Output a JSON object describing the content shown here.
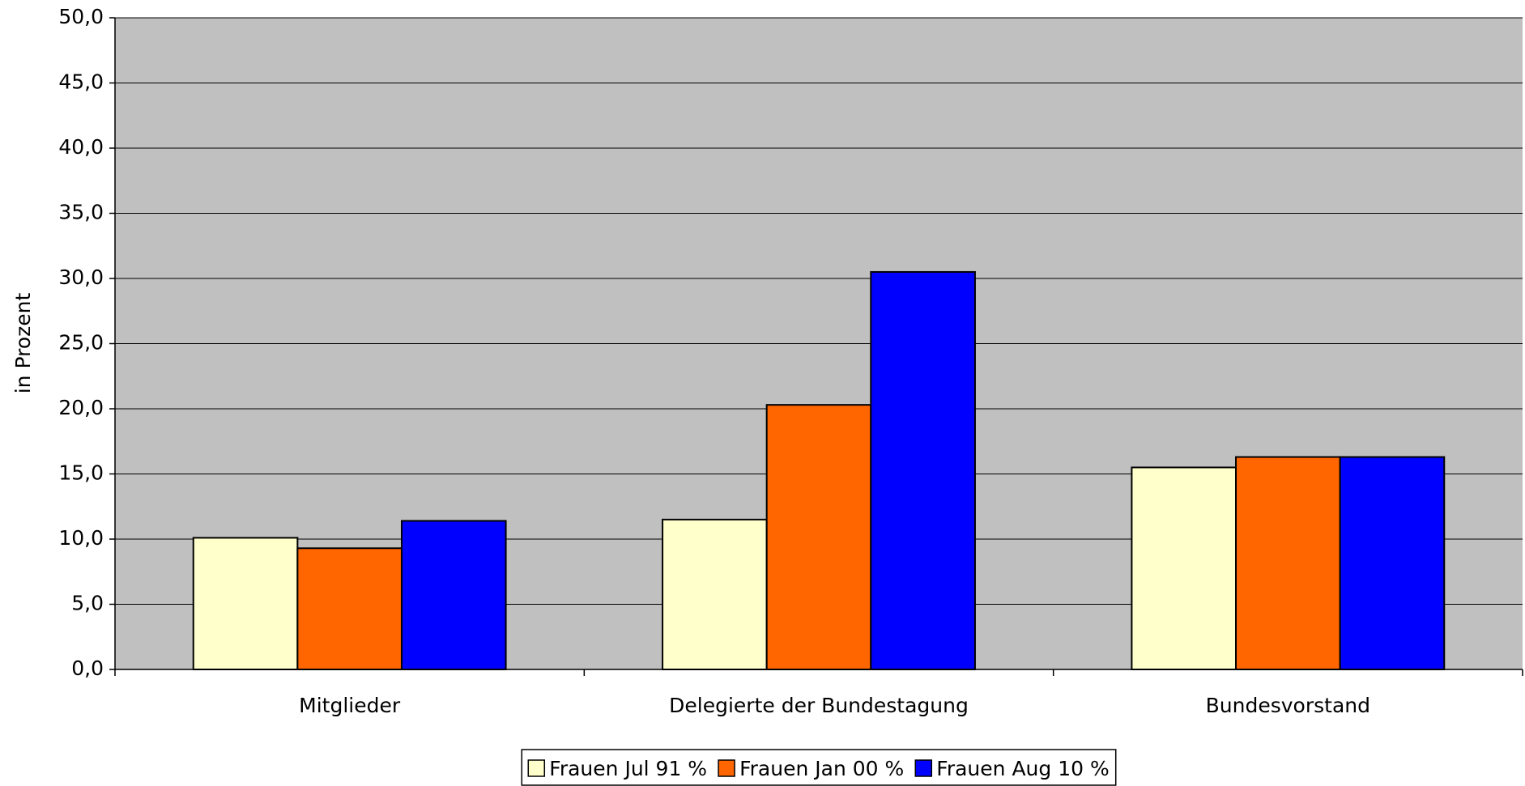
{
  "chart_data": {
    "type": "bar",
    "y_label": "in Prozent",
    "categories": [
      "Mitglieder",
      "Delegierte der Bundestagung",
      "Bundesvorstand"
    ],
    "series": [
      {
        "name": "Frauen Jul 91 %",
        "color": "#ffffcc",
        "values": [
          10.1,
          11.5,
          15.5
        ]
      },
      {
        "name": "Frauen Jan 00 %",
        "color": "#ff6600",
        "values": [
          9.3,
          20.3,
          16.3
        ]
      },
      {
        "name": "Frauen Aug 10 %",
        "color": "#0000ff",
        "values": [
          11.4,
          30.5,
          16.3
        ]
      }
    ],
    "ylim": [
      0,
      50
    ],
    "yticks": [
      {
        "value": 0,
        "label": "0,0"
      },
      {
        "value": 5,
        "label": "5,0"
      },
      {
        "value": 10,
        "label": "10,0"
      },
      {
        "value": 15,
        "label": "15,0"
      },
      {
        "value": 20,
        "label": "20,0"
      },
      {
        "value": 25,
        "label": "25,0"
      },
      {
        "value": 30,
        "label": "30,0"
      },
      {
        "value": 35,
        "label": "35,0"
      },
      {
        "value": 40,
        "label": "40,0"
      },
      {
        "value": 45,
        "label": "45,0"
      },
      {
        "value": 50,
        "label": "50,0"
      }
    ],
    "grid": true,
    "legend": "bottom",
    "plot_background": "#c0c0c0"
  }
}
